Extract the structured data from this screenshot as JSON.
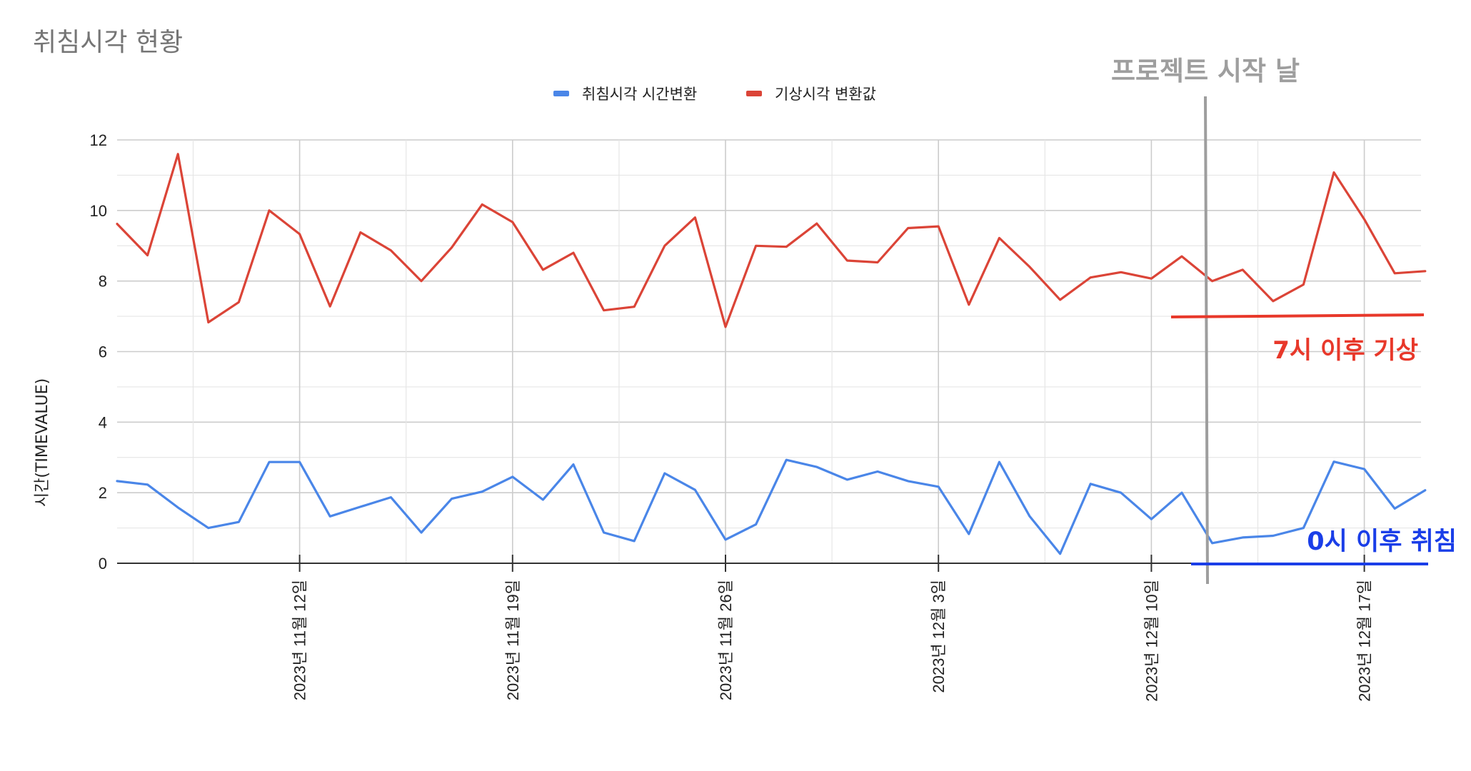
{
  "chart_data": {
    "type": "line",
    "title": "취침시각 현황",
    "ylabel": "시간(TIMEVALUE)",
    "xlabel": "",
    "ylim": [
      0,
      12
    ],
    "yticks": [
      "0",
      "2",
      "4",
      "6",
      "8",
      "10",
      "12"
    ],
    "xtick_labels": [
      "2023년 11월 12일",
      "2023년 11월 19일",
      "2023년 11월 26일",
      "2023년 12월 3일",
      "2023년 12월 10일",
      "2023년 12월 17일"
    ],
    "x_start": "2023년 11월 6일",
    "legend": "top",
    "grid": true,
    "series": [
      {
        "name": "취침시각 시간변환",
        "color": "#4a86e8",
        "values": [
          2.33,
          2.23,
          1.58,
          1.0,
          1.17,
          2.87,
          2.87,
          1.33,
          1.6,
          1.87,
          0.87,
          1.83,
          2.03,
          2.45,
          1.8,
          2.8,
          0.87,
          0.63,
          2.55,
          2.08,
          0.67,
          1.1,
          2.93,
          2.73,
          2.37,
          2.6,
          2.33,
          2.17,
          0.83,
          2.87,
          1.33,
          0.27,
          2.25,
          2.0,
          1.25,
          2.0,
          0.57,
          0.73,
          0.78,
          1.0,
          2.88,
          2.67,
          1.55,
          2.07
        ]
      },
      {
        "name": "기상시각 변환값",
        "color": "#db4437",
        "values": [
          9.62,
          8.73,
          11.6,
          6.83,
          7.4,
          10.0,
          9.33,
          7.28,
          9.38,
          8.87,
          8.0,
          8.95,
          10.17,
          9.67,
          8.32,
          8.8,
          7.17,
          7.27,
          9.0,
          9.8,
          6.7,
          9.0,
          8.97,
          9.63,
          8.58,
          8.53,
          9.5,
          9.55,
          7.33,
          9.22,
          8.4,
          7.47,
          8.1,
          8.25,
          8.07,
          8.7,
          8.0,
          8.32,
          7.43,
          7.9,
          11.08,
          9.75,
          8.22,
          8.28
        ]
      }
    ],
    "annotations": {
      "project_start_label": "프로젝트 시작 날",
      "wake_label": "7시 이후 기상",
      "sleep_label": "0시 이후 취침",
      "project_start_color": "#9e9e9e",
      "wake_color": "#e8382a",
      "sleep_color": "#1a3ee8"
    }
  }
}
